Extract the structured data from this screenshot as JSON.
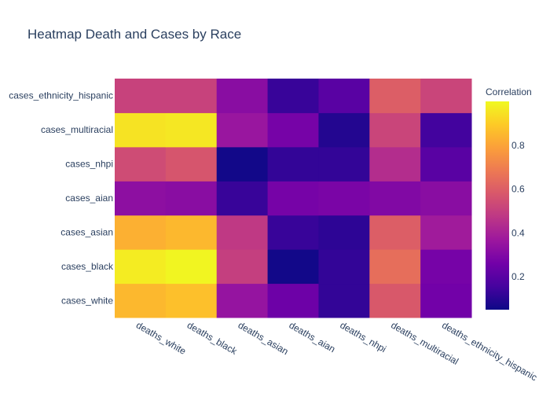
{
  "chart_data": {
    "type": "heatmap",
    "title": "Heatmap Death and Cases by Race",
    "x_categories": [
      "deaths_white",
      "deaths_black",
      "deaths_asian",
      "deaths_aian",
      "deaths_nhpi",
      "deaths_multiracial",
      "deaths_ethnicity_hispanic"
    ],
    "y_categories": [
      "cases_white",
      "cases_black",
      "cases_asian",
      "cases_aian",
      "cases_nhpi",
      "cases_multiracial",
      "cases_ethnicity_hispanic"
    ],
    "z": [
      [
        0.85,
        0.87,
        0.35,
        0.25,
        0.12,
        0.58,
        0.26
      ],
      [
        0.97,
        0.99,
        0.5,
        0.06,
        0.12,
        0.65,
        0.27
      ],
      [
        0.83,
        0.85,
        0.48,
        0.13,
        0.11,
        0.6,
        0.38
      ],
      [
        0.33,
        0.32,
        0.13,
        0.27,
        0.28,
        0.3,
        0.32
      ],
      [
        0.54,
        0.57,
        0.06,
        0.12,
        0.12,
        0.44,
        0.2
      ],
      [
        0.95,
        0.96,
        0.36,
        0.27,
        0.09,
        0.52,
        0.15
      ],
      [
        0.51,
        0.51,
        0.32,
        0.13,
        0.2,
        0.6,
        0.52
      ]
    ],
    "colorscale": [
      "#0d0887",
      "#46039f",
      "#7201a8",
      "#9c179e",
      "#bd3786",
      "#d8576b",
      "#ed7953",
      "#fb9f3a",
      "#fdca26",
      "#f0f921"
    ],
    "zmin": 0.05,
    "zmax": 1.0,
    "colorbar": {
      "title": "Correlation",
      "ticks": [
        0.2,
        0.4,
        0.6,
        0.8
      ],
      "tick_labels": [
        "0.2",
        "0.4",
        "0.6",
        "0.8"
      ]
    }
  }
}
